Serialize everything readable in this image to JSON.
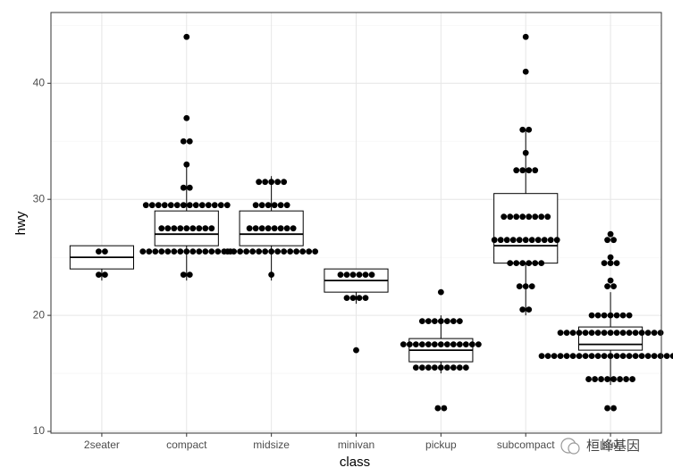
{
  "chart_data": {
    "type": "boxplot",
    "xlabel": "class",
    "ylabel": "hwy",
    "categories": [
      "2seater",
      "compact",
      "midsize",
      "minivan",
      "pickup",
      "subcompact",
      "suv"
    ],
    "boxes": [
      {
        "lower": 23,
        "q1": 24,
        "median": 25,
        "q3": 26,
        "upper": 26
      },
      {
        "lower": 23,
        "q1": 26,
        "median": 27,
        "q3": 29,
        "upper": 33
      },
      {
        "lower": 23,
        "q1": 26,
        "median": 27,
        "q3": 29,
        "upper": 32
      },
      {
        "lower": 21,
        "q1": 22,
        "median": 23,
        "q3": 24,
        "upper": 24
      },
      {
        "lower": 15,
        "q1": 16,
        "median": 17,
        "q3": 18,
        "upper": 20
      },
      {
        "lower": 20,
        "q1": 24.5,
        "median": 26,
        "q3": 30.5,
        "upper": 36
      },
      {
        "lower": 14,
        "q1": 17,
        "median": 17.5,
        "q3": 19,
        "upper": 22
      }
    ],
    "dots": [
      [
        {
          "y": 25.5,
          "count": 2
        },
        {
          "y": 23.5,
          "count": 2
        }
      ],
      [
        {
          "y": 44,
          "count": 1
        },
        {
          "y": 37,
          "count": 1
        },
        {
          "y": 35,
          "count": 2
        },
        {
          "y": 33,
          "count": 1
        },
        {
          "y": 31,
          "count": 2
        },
        {
          "y": 29.5,
          "count": 14
        },
        {
          "y": 27.5,
          "count": 9
        },
        {
          "y": 25.5,
          "count": 15
        },
        {
          "y": 23.5,
          "count": 2
        }
      ],
      [
        {
          "y": 31.5,
          "count": 5
        },
        {
          "y": 29.5,
          "count": 6
        },
        {
          "y": 27.5,
          "count": 8
        },
        {
          "y": 25.5,
          "count": 15
        },
        {
          "y": 23.5,
          "count": 1
        }
      ],
      [
        {
          "y": 23.5,
          "count": 6
        },
        {
          "y": 21.5,
          "count": 4
        },
        {
          "y": 17,
          "count": 1
        }
      ],
      [
        {
          "y": 22,
          "count": 1
        },
        {
          "y": 19.5,
          "count": 7
        },
        {
          "y": 17.5,
          "count": 13
        },
        {
          "y": 15.5,
          "count": 9
        },
        {
          "y": 12,
          "count": 2
        }
      ],
      [
        {
          "y": 44,
          "count": 1
        },
        {
          "y": 41,
          "count": 1
        },
        {
          "y": 36,
          "count": 2
        },
        {
          "y": 34,
          "count": 1
        },
        {
          "y": 32.5,
          "count": 4
        },
        {
          "y": 28.5,
          "count": 8
        },
        {
          "y": 26.5,
          "count": 11
        },
        {
          "y": 24.5,
          "count": 6
        },
        {
          "y": 22.5,
          "count": 3
        },
        {
          "y": 20.5,
          "count": 2
        }
      ],
      [
        {
          "y": 27,
          "count": 1
        },
        {
          "y": 26.5,
          "count": 2
        },
        {
          "y": 25,
          "count": 1
        },
        {
          "y": 24.5,
          "count": 3
        },
        {
          "y": 23,
          "count": 1
        },
        {
          "y": 22.5,
          "count": 2
        },
        {
          "y": 20,
          "count": 7
        },
        {
          "y": 18.5,
          "count": 17
        },
        {
          "y": 16.5,
          "count": 23
        },
        {
          "y": 14.5,
          "count": 8
        },
        {
          "y": 12,
          "count": 2
        }
      ]
    ],
    "ylim": [
      9.85,
      46.1
    ],
    "yticks": [
      10,
      20,
      30,
      40
    ],
    "yminor": [
      15,
      25,
      35,
      45
    ],
    "grid": true,
    "color": "#000000",
    "watermark": "桓峰基因"
  }
}
